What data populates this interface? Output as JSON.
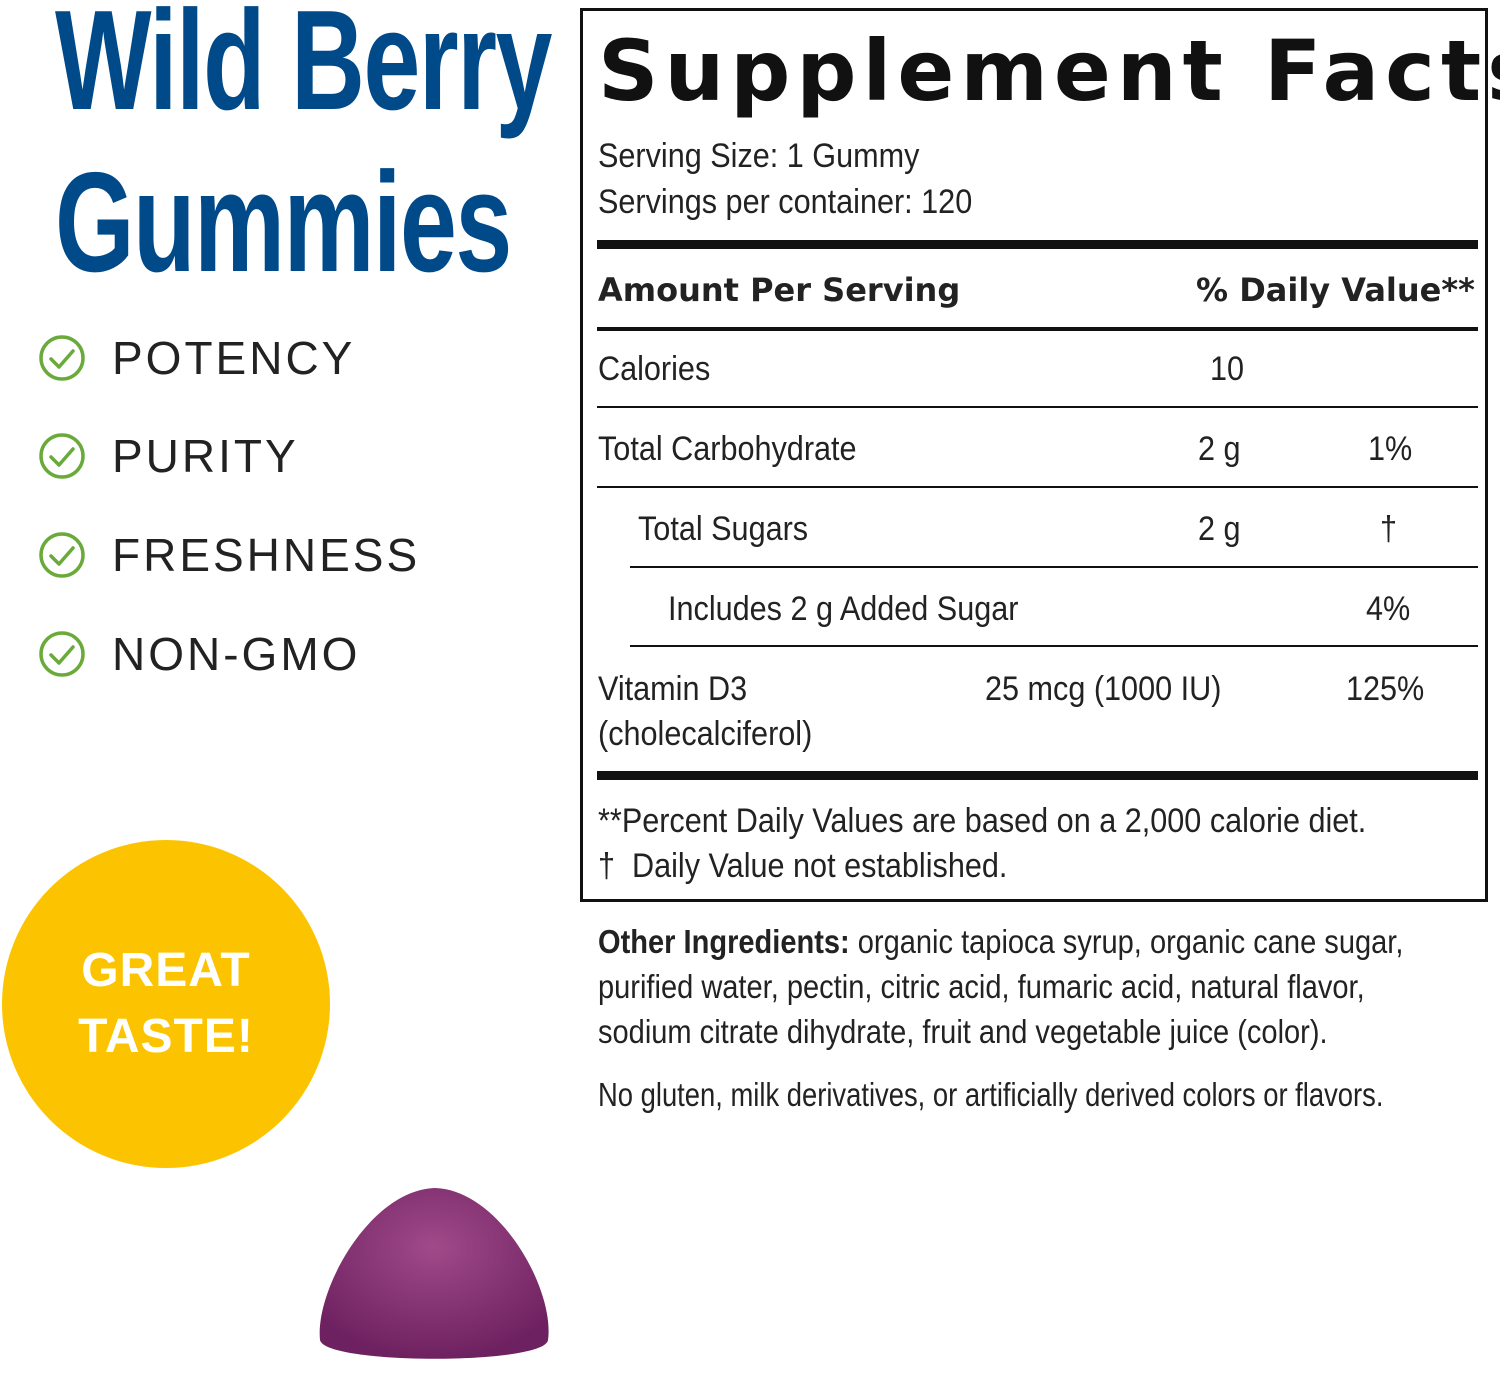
{
  "product": {
    "title_line1": "Wild Berry",
    "title_line2": "Gummies",
    "brand_color": "#004a8a"
  },
  "features": [
    {
      "label": "POTENCY",
      "icon": "check-circle-icon"
    },
    {
      "label": "PURITY",
      "icon": "check-circle-icon"
    },
    {
      "label": "FRESHNESS",
      "icon": "check-circle-icon"
    },
    {
      "label": "NON-GMO",
      "icon": "check-circle-icon"
    }
  ],
  "check_color": "#6aaa3a",
  "badge": {
    "line1": "GREAT",
    "line2": "TASTE!",
    "color": "#fcc400"
  },
  "facts": {
    "title": "Supplement Facts",
    "serving_size": "Serving Size: 1 Gummy",
    "servings_per_container": "Servings per container: 120",
    "header_amount": "Amount Per Serving",
    "header_dv": "% Daily Value**",
    "rows": [
      {
        "name": "Calories",
        "amount": "10",
        "dv": ""
      },
      {
        "name": "Total Carbohydrate",
        "amount": "2 g",
        "dv": "1%"
      },
      {
        "name": "Total Sugars",
        "amount": "2 g",
        "dv": "†"
      },
      {
        "name": "Includes 2 g Added Sugar",
        "amount": "",
        "dv": "4%"
      },
      {
        "name": "Vitamin D3",
        "name2": "(cholecalciferol)",
        "amount": "25 mcg (1000 IU)",
        "dv": "125%"
      }
    ],
    "footnote1": "**Percent Daily Values are based on a 2,000 calorie diet.",
    "footnote2": "†  Daily Value not established."
  },
  "ingredients": {
    "label": "Other Ingredients:",
    "line1": " organic tapioca syrup, organic cane sugar,",
    "line2": "purified water, pectin, citric acid, fumaric acid, natural flavor,",
    "line3": "sodium citrate dihydrate, fruit and vegetable juice (color).",
    "note": "No gluten, milk derivatives, or artificially derived colors or flavors."
  }
}
